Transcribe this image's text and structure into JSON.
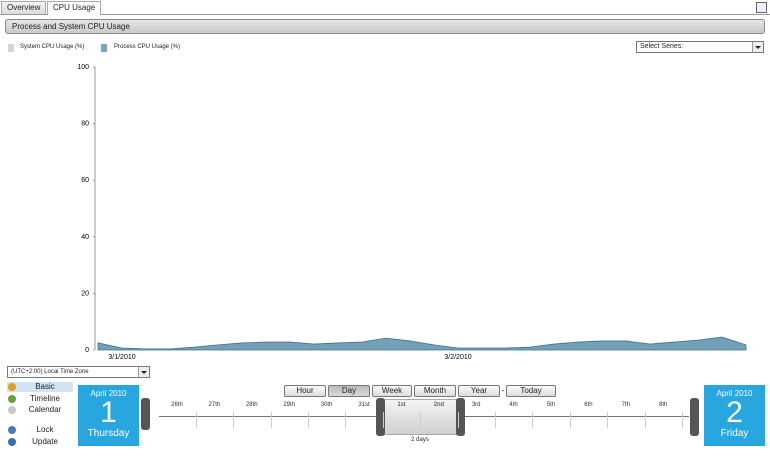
{
  "tabs": [
    "Overview",
    "CPU Usage"
  ],
  "panel_title": "Process and System CPU Usage",
  "select_series": "Select Series:",
  "chart_data": {
    "type": "area",
    "legend": [
      {
        "name": "System CPU Usage (%)",
        "color": "#d4d4d4"
      },
      {
        "name": "Process CPU Usage (%)",
        "color": "#7aa6bd"
      }
    ],
    "categories": [
      null,
      "3/1/2010",
      null,
      null,
      null,
      null,
      null,
      null,
      null,
      null,
      null,
      null,
      null,
      null,
      null,
      "3/2/2010",
      null,
      null,
      null,
      null,
      null,
      null,
      null,
      null,
      null,
      null,
      null,
      null
    ],
    "series": [
      {
        "color": "#5b8fa9",
        "values": [
          2.5,
          0.7,
          0.4,
          0.4,
          1,
          1.8,
          2.5,
          2.8,
          2.8,
          2.1,
          2.5,
          2.8,
          4.2,
          3.2,
          1.8,
          0.7,
          0.7,
          0.7,
          1,
          2.1,
          2.8,
          3.2,
          3.2,
          2.1,
          2.8,
          3.5,
          4.6,
          1.8
        ]
      }
    ],
    "ylim": [
      0,
      100
    ],
    "yticks": [
      0,
      20,
      40,
      60,
      80,
      100
    ]
  },
  "timezone": "(UTC+2:00) Local Time Zone",
  "menu": [
    {
      "label": "Basic",
      "color": "#e0a020"
    },
    {
      "label": "Timeline",
      "color": "#6a9e3a"
    },
    {
      "label": "Calendar",
      "color": "#c8c8c8"
    },
    {
      "label": "Lock",
      "color": "#4a7ab8"
    },
    {
      "label": "Update",
      "color": "#3a6ab0"
    }
  ],
  "start_date": {
    "month": "April 2010",
    "day": 1,
    "weekday": "Thursday"
  },
  "end_date": {
    "month": "April 2010",
    "day": 2,
    "weekday": "Friday"
  },
  "buttons": [
    "Hour",
    "Day",
    "Week",
    "Month",
    "Year",
    "-",
    "Today"
  ],
  "timeline": {
    "labels": [
      "26th",
      "27th",
      "28th",
      "29th",
      "30th",
      "31st",
      "1st",
      "2nd",
      "3rd",
      "4th",
      "5th",
      "6th",
      "7th",
      "8th"
    ],
    "span": "2 days"
  }
}
